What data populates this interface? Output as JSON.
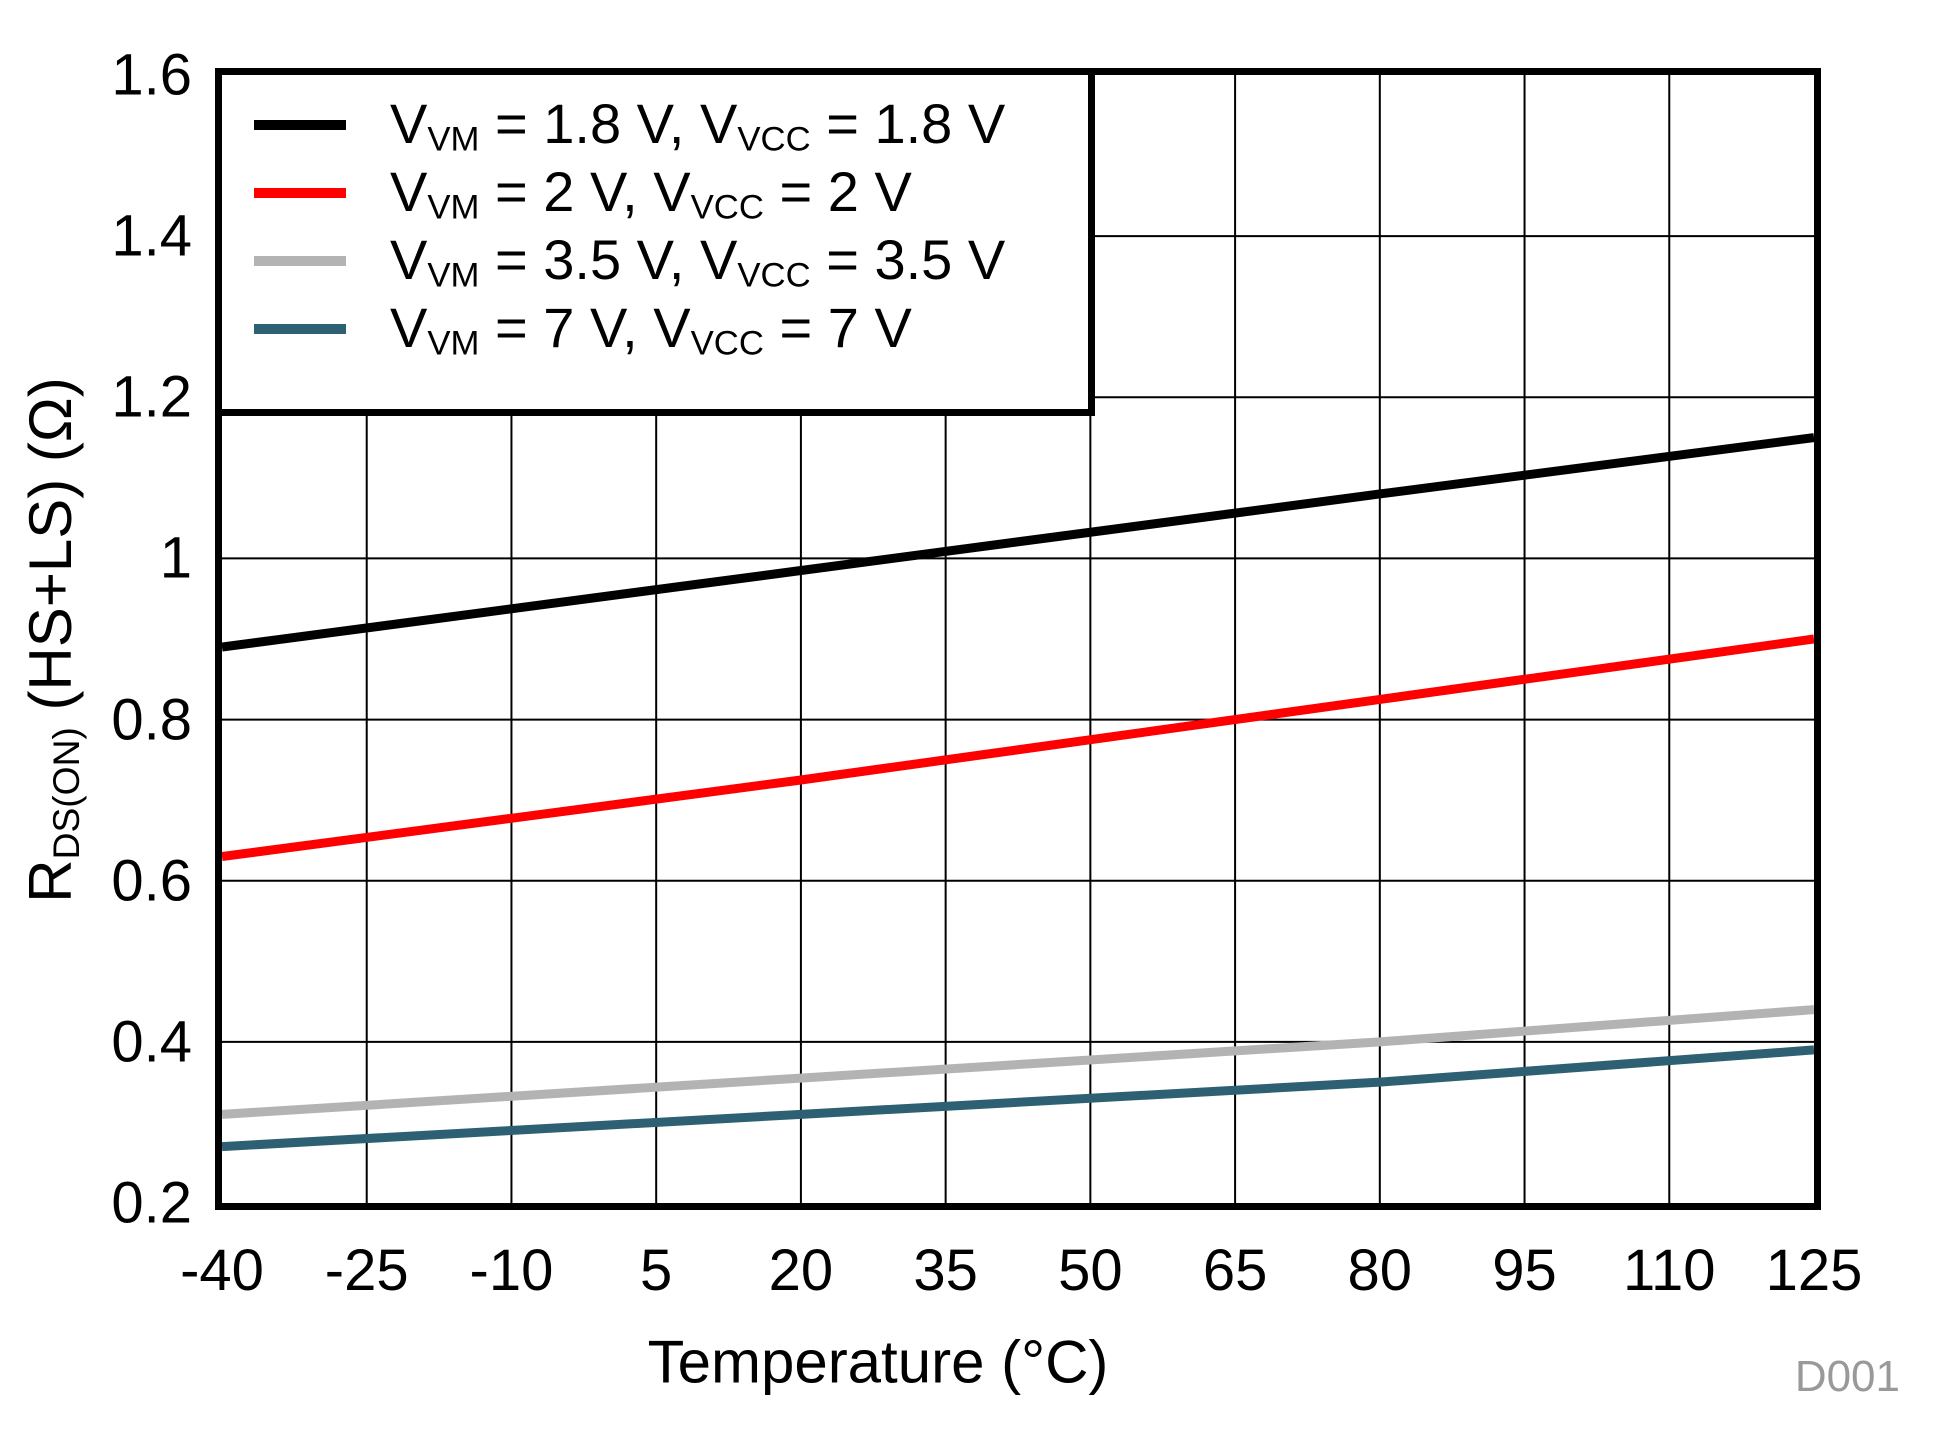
{
  "x_axis_title": "Temperature (°C)",
  "y_axis_title": {
    "pre": "R",
    "sub": "DS(ON)",
    "post": " (HS+LS) (Ω)"
  },
  "watermark": "D001",
  "legend": {
    "items": [
      {
        "color": "#000000",
        "pre": "V",
        "sub1": "VM",
        "mid": " = 1.8 V, V",
        "sub2": "VCC",
        "post": " = 1.8 V"
      },
      {
        "color": "#FF0000",
        "pre": "V",
        "sub1": "VM",
        "mid": " = 2 V, V",
        "sub2": "VCC",
        "post": " = 2 V"
      },
      {
        "color": "#B3B3B3",
        "pre": "V",
        "sub1": "VM",
        "mid": " = 3.5 V, V",
        "sub2": "VCC",
        "post": " = 3.5 V"
      },
      {
        "color": "#2D6073",
        "pre": "V",
        "sub1": "VM",
        "mid": " = 7 V, V",
        "sub2": "VCC",
        "post": " = 7 V"
      }
    ]
  },
  "chart_data": {
    "type": "line",
    "title": "",
    "xlabel": "Temperature (°C)",
    "ylabel": "RDS(ON) (HS+LS) (Ω)",
    "xlim": [
      -40,
      125
    ],
    "ylim": [
      0.2,
      1.6
    ],
    "x_ticks": [
      -40,
      -25,
      -10,
      5,
      20,
      35,
      50,
      65,
      80,
      95,
      110,
      125
    ],
    "y_ticks": [
      "1.6",
      "1.4",
      "1.2",
      "1",
      "0.8",
      "0.6",
      "0.4",
      "0.2"
    ],
    "grid": true,
    "legend_position": "top-left",
    "series": [
      {
        "name": "VVM = 1.8 V, VVCC = 1.8 V",
        "color": "#000000",
        "x": [
          -40,
          20,
          80,
          125
        ],
        "values": [
          0.89,
          0.985,
          1.08,
          1.15
        ]
      },
      {
        "name": "VVM = 2 V, VVCC = 2 V",
        "color": "#FF0000",
        "x": [
          -40,
          20,
          80,
          125
        ],
        "values": [
          0.63,
          0.725,
          0.825,
          0.9
        ]
      },
      {
        "name": "VVM = 3.5 V, VVCC = 3.5 V",
        "color": "#B3B3B3",
        "x": [
          -40,
          20,
          80,
          125
        ],
        "values": [
          0.31,
          0.355,
          0.4,
          0.44
        ]
      },
      {
        "name": "VVM = 7 V, VVCC = 7 V",
        "color": "#2D6073",
        "x": [
          -40,
          20,
          80,
          125
        ],
        "values": [
          0.27,
          0.31,
          0.35,
          0.39
        ]
      }
    ]
  }
}
